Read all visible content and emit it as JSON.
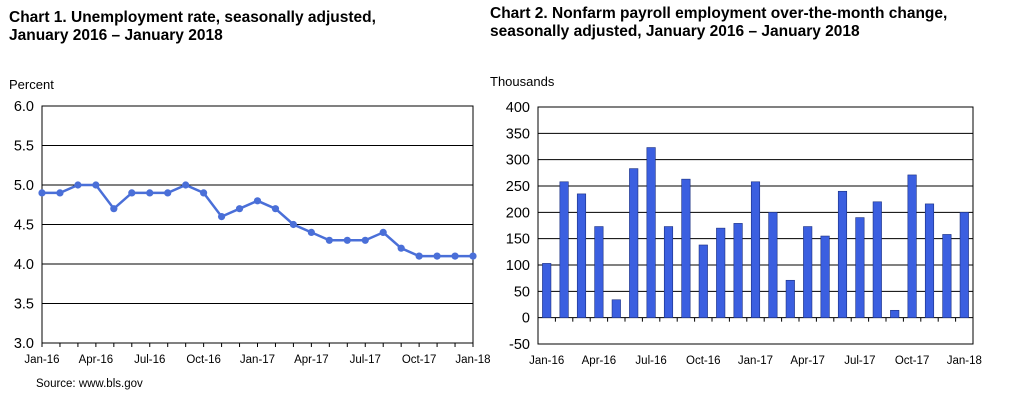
{
  "chart_data": [
    {
      "type": "line",
      "title_line1": "Chart 1. Unemployment rate, seasonally adjusted,",
      "title_line2": "January 2016 – January 2018",
      "ylabel": "Percent",
      "xlabel": "",
      "ylim": [
        3.0,
        6.0
      ],
      "yticks": [
        "6.0",
        "5.5",
        "5.0",
        "4.5",
        "4.0",
        "3.5",
        "3.0"
      ],
      "xtick_labels": [
        "Jan-16",
        "Apr-16",
        "Jul-16",
        "Oct-16",
        "Jan-17",
        "Apr-17",
        "Jul-17",
        "Oct-17",
        "Jan-18"
      ],
      "grid": true,
      "legend": "none",
      "series": [
        {
          "color": "#4a6fd8",
          "values": [
            4.9,
            4.9,
            5.0,
            5.0,
            4.7,
            4.9,
            4.9,
            4.9,
            5.0,
            4.9,
            4.6,
            4.7,
            4.8,
            4.7,
            4.5,
            4.4,
            4.3,
            4.3,
            4.3,
            4.4,
            4.2,
            4.1,
            4.1,
            4.1,
            4.1
          ]
        }
      ]
    },
    {
      "type": "bar",
      "title_line1": "Chart 2. Nonfarm payroll employment over-the-month change,",
      "title_line2": "seasonally adjusted, January 2016 – January 2018",
      "ylabel": "Thousands",
      "xlabel": "",
      "ylim": [
        -50,
        400
      ],
      "yticks": [
        "400",
        "350",
        "300",
        "250",
        "200",
        "150",
        "100",
        "50",
        "0",
        "-50"
      ],
      "xtick_labels": [
        "Jan-16",
        "Apr-16",
        "Jul-16",
        "Oct-16",
        "Jan-17",
        "Apr-17",
        "Jul-17",
        "Oct-17",
        "Jan-18"
      ],
      "grid": true,
      "legend": "none",
      "series": [
        {
          "color": "#3b5fe0",
          "values": [
            103,
            258,
            235,
            173,
            34,
            283,
            323,
            173,
            263,
            138,
            170,
            179,
            258,
            200,
            71,
            173,
            155,
            240,
            190,
            220,
            14,
            271,
            216,
            158,
            200
          ]
        }
      ]
    }
  ],
  "source": "Source: www.bls.gov"
}
